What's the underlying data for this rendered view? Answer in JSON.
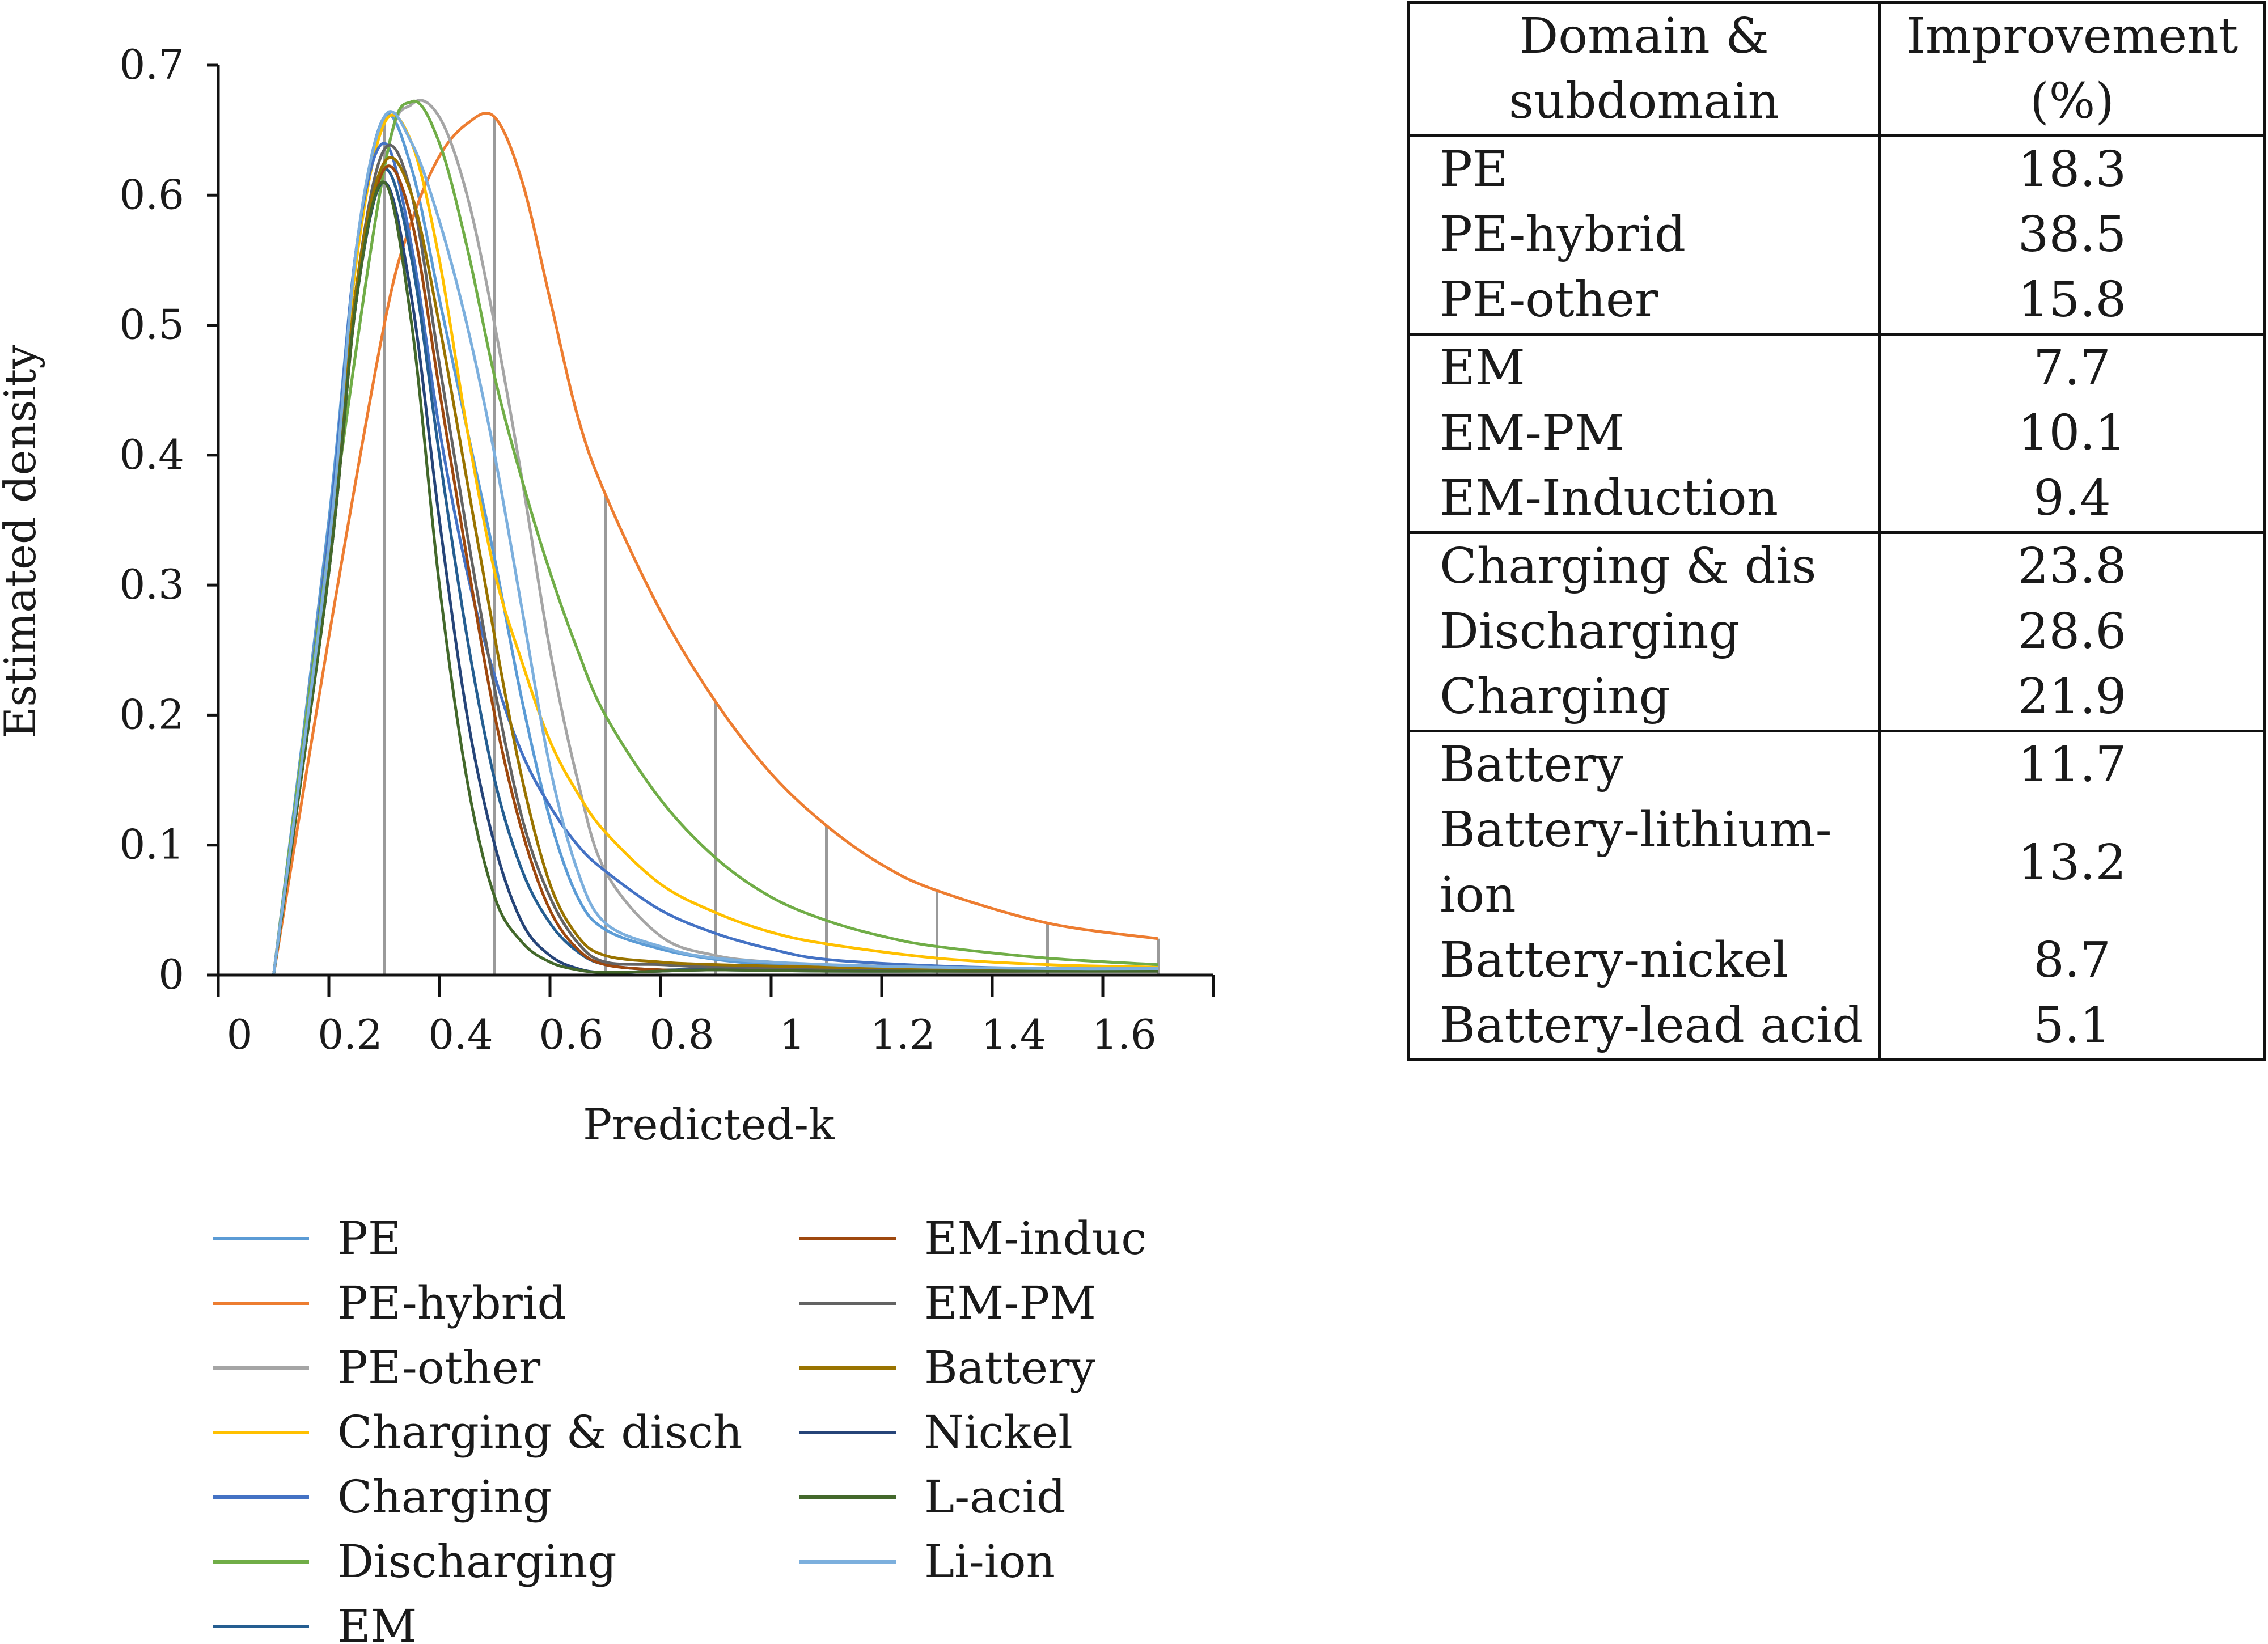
{
  "chart_data": {
    "type": "line",
    "title": "",
    "xlabel": "Predicted-k",
    "ylabel": "Estimated density",
    "xlim": [
      -0.1,
      1.7
    ],
    "ylim": [
      0,
      0.7
    ],
    "x_ticks": [
      "0",
      "0.2",
      "0.4",
      "0.6",
      "0.8",
      "1",
      "1.2",
      "1.4",
      "1.6"
    ],
    "y_ticks": [
      "0",
      "0.1",
      "0.2",
      "0.3",
      "0.4",
      "0.5",
      "0.6",
      "0.7"
    ],
    "grid": false,
    "legend_position": "bottom",
    "reference_lines_x": [
      0.2,
      0.4,
      0.6,
      0.8,
      1.0,
      1.2,
      1.4,
      1.6
    ],
    "series": [
      {
        "name": "PE",
        "color": "#5b9bd5",
        "x": [
          0,
          0.1,
          0.15,
          0.2,
          0.25,
          0.3,
          0.35,
          0.4,
          0.45,
          0.5,
          0.55,
          0.6,
          0.7,
          0.8,
          0.9,
          1.0,
          1.2,
          1.4,
          1.6
        ],
        "y": [
          0,
          0.35,
          0.56,
          0.66,
          0.62,
          0.52,
          0.42,
          0.32,
          0.21,
          0.12,
          0.06,
          0.035,
          0.02,
          0.012,
          0.008,
          0.006,
          0.005,
          0.005,
          0.005
        ]
      },
      {
        "name": "PE-hybrid",
        "color": "#ed7d31",
        "x": [
          0,
          0.1,
          0.2,
          0.25,
          0.3,
          0.35,
          0.4,
          0.45,
          0.5,
          0.55,
          0.6,
          0.7,
          0.8,
          0.9,
          1.0,
          1.1,
          1.2,
          1.4,
          1.6
        ],
        "y": [
          0,
          0.26,
          0.5,
          0.58,
          0.63,
          0.655,
          0.66,
          0.61,
          0.52,
          0.43,
          0.37,
          0.28,
          0.21,
          0.155,
          0.115,
          0.085,
          0.065,
          0.04,
          0.028
        ]
      },
      {
        "name": "PE-other",
        "color": "#a5a5a5",
        "x": [
          0,
          0.1,
          0.2,
          0.25,
          0.3,
          0.35,
          0.4,
          0.45,
          0.5,
          0.55,
          0.6,
          0.7,
          0.8,
          0.9,
          1.0,
          1.2,
          1.4,
          1.6
        ],
        "y": [
          0,
          0.33,
          0.62,
          0.67,
          0.66,
          0.6,
          0.5,
          0.38,
          0.25,
          0.15,
          0.08,
          0.03,
          0.015,
          0.01,
          0.008,
          0.006,
          0.005,
          0.005
        ]
      },
      {
        "name": "Charging & disch",
        "color": "#ffc000",
        "x": [
          0,
          0.1,
          0.15,
          0.2,
          0.25,
          0.3,
          0.35,
          0.4,
          0.45,
          0.5,
          0.55,
          0.6,
          0.7,
          0.8,
          0.9,
          1.0,
          1.2,
          1.4,
          1.6
        ],
        "y": [
          0,
          0.34,
          0.55,
          0.655,
          0.64,
          0.55,
          0.42,
          0.31,
          0.24,
          0.18,
          0.14,
          0.11,
          0.07,
          0.048,
          0.033,
          0.024,
          0.013,
          0.008,
          0.006
        ]
      },
      {
        "name": "Charging",
        "color": "#4472c4",
        "x": [
          0,
          0.1,
          0.15,
          0.2,
          0.25,
          0.3,
          0.35,
          0.4,
          0.45,
          0.5,
          0.55,
          0.6,
          0.7,
          0.8,
          0.9,
          1.0,
          1.2,
          1.4,
          1.6
        ],
        "y": [
          0,
          0.34,
          0.56,
          0.64,
          0.56,
          0.42,
          0.31,
          0.23,
          0.17,
          0.13,
          0.1,
          0.08,
          0.05,
          0.032,
          0.02,
          0.012,
          0.007,
          0.005,
          0.005
        ]
      },
      {
        "name": "Discharging",
        "color": "#70ad47",
        "x": [
          0,
          0.1,
          0.2,
          0.25,
          0.3,
          0.35,
          0.4,
          0.45,
          0.5,
          0.55,
          0.6,
          0.7,
          0.8,
          0.9,
          1.0,
          1.1,
          1.2,
          1.4,
          1.6
        ],
        "y": [
          0,
          0.33,
          0.62,
          0.672,
          0.64,
          0.56,
          0.46,
          0.38,
          0.31,
          0.25,
          0.2,
          0.135,
          0.09,
          0.06,
          0.042,
          0.03,
          0.022,
          0.013,
          0.008
        ]
      },
      {
        "name": "EM",
        "color": "#255e91",
        "x": [
          0,
          0.1,
          0.15,
          0.2,
          0.25,
          0.3,
          0.35,
          0.4,
          0.45,
          0.5,
          0.55,
          0.6,
          0.7,
          0.8,
          1.0,
          1.2,
          1.4,
          1.6
        ],
        "y": [
          0,
          0.32,
          0.53,
          0.62,
          0.55,
          0.4,
          0.26,
          0.15,
          0.08,
          0.04,
          0.018,
          0.008,
          0.004,
          0.005,
          0.004,
          0.003,
          0.003,
          0.003
        ]
      },
      {
        "name": "EM-induc",
        "color": "#9e480e",
        "x": [
          0,
          0.1,
          0.15,
          0.2,
          0.25,
          0.3,
          0.35,
          0.4,
          0.45,
          0.5,
          0.55,
          0.6,
          0.7,
          0.8,
          1.0,
          1.2,
          1.4,
          1.6
        ],
        "y": [
          0,
          0.31,
          0.52,
          0.62,
          0.58,
          0.45,
          0.32,
          0.2,
          0.11,
          0.05,
          0.02,
          0.008,
          0.004,
          0.004,
          0.004,
          0.003,
          0.003,
          0.003
        ]
      },
      {
        "name": "EM-PM",
        "color": "#636363",
        "x": [
          0,
          0.1,
          0.15,
          0.2,
          0.25,
          0.3,
          0.35,
          0.4,
          0.45,
          0.5,
          0.55,
          0.6,
          0.7,
          0.8,
          1.0,
          1.2,
          1.4,
          1.6
        ],
        "y": [
          0,
          0.32,
          0.53,
          0.635,
          0.6,
          0.47,
          0.34,
          0.22,
          0.12,
          0.06,
          0.025,
          0.01,
          0.008,
          0.006,
          0.005,
          0.004,
          0.004,
          0.004
        ]
      },
      {
        "name": "Battery",
        "color": "#997300",
        "x": [
          0,
          0.1,
          0.15,
          0.2,
          0.25,
          0.3,
          0.35,
          0.4,
          0.45,
          0.5,
          0.55,
          0.6,
          0.7,
          0.8,
          1.0,
          1.2,
          1.4,
          1.6
        ],
        "y": [
          0,
          0.32,
          0.53,
          0.625,
          0.6,
          0.5,
          0.38,
          0.26,
          0.15,
          0.07,
          0.03,
          0.015,
          0.01,
          0.008,
          0.006,
          0.005,
          0.004,
          0.004
        ]
      },
      {
        "name": "Nickel",
        "color": "#264478",
        "x": [
          0,
          0.1,
          0.15,
          0.2,
          0.25,
          0.3,
          0.35,
          0.4,
          0.45,
          0.5,
          0.55,
          0.6,
          0.7,
          0.8,
          1.0,
          1.2,
          1.4,
          1.6
        ],
        "y": [
          0,
          0.31,
          0.52,
          0.61,
          0.52,
          0.35,
          0.2,
          0.1,
          0.04,
          0.015,
          0.005,
          0.002,
          0.003,
          0.004,
          0.003,
          0.003,
          0.003,
          0.003
        ]
      },
      {
        "name": "L-acid",
        "color": "#43682b",
        "x": [
          0,
          0.1,
          0.15,
          0.2,
          0.25,
          0.3,
          0.35,
          0.4,
          0.45,
          0.5,
          0.55,
          0.6,
          0.7,
          0.8,
          1.0,
          1.2,
          1.4,
          1.6
        ],
        "y": [
          0,
          0.31,
          0.52,
          0.61,
          0.5,
          0.3,
          0.15,
          0.06,
          0.025,
          0.01,
          0.004,
          0.002,
          0.003,
          0.004,
          0.003,
          0.003,
          0.003,
          0.003
        ]
      },
      {
        "name": "Li-ion",
        "color": "#7cafdd",
        "x": [
          0,
          0.1,
          0.15,
          0.2,
          0.25,
          0.3,
          0.35,
          0.4,
          0.45,
          0.5,
          0.55,
          0.6,
          0.7,
          0.8,
          1.0,
          1.2,
          1.4,
          1.6
        ],
        "y": [
          0,
          0.33,
          0.56,
          0.66,
          0.64,
          0.58,
          0.5,
          0.4,
          0.28,
          0.16,
          0.08,
          0.04,
          0.022,
          0.013,
          0.008,
          0.006,
          0.005,
          0.005
        ]
      }
    ]
  },
  "table": {
    "headers": [
      "Domain & subdomain",
      "Improvement (%)"
    ],
    "rows": [
      {
        "name": "PE",
        "value": "18.3",
        "group_end": false
      },
      {
        "name": "PE-hybrid",
        "value": "38.5",
        "group_end": false
      },
      {
        "name": "PE-other",
        "value": "15.8",
        "group_end": true
      },
      {
        "name": "EM",
        "value": "7.7",
        "group_end": false
      },
      {
        "name": "EM-PM",
        "value": "10.1",
        "group_end": false
      },
      {
        "name": "EM-Induction",
        "value": "9.4",
        "group_end": true
      },
      {
        "name": "Charging & dis",
        "value": "23.8",
        "group_end": false
      },
      {
        "name": "Discharging",
        "value": "28.6",
        "group_end": false
      },
      {
        "name": "Charging",
        "value": "21.9",
        "group_end": true
      },
      {
        "name": "Battery",
        "value": "11.7",
        "group_end": false
      },
      {
        "name": "Battery-lithium-ion",
        "value": "13.2",
        "group_end": false
      },
      {
        "name": "Battery-nickel",
        "value": "8.7",
        "group_end": false
      },
      {
        "name": "Battery-lead acid",
        "value": "5.1",
        "group_end": true
      }
    ]
  }
}
